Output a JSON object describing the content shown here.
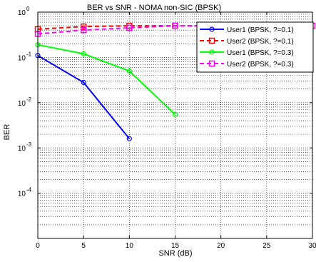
{
  "chart_data": {
    "type": "line",
    "title": "BER vs SNR - NOMA non-SIC (BPSK)",
    "xlabel": "SNR (dB)",
    "ylabel": "BER",
    "xscale": "linear",
    "yscale": "log",
    "xlim": [
      0,
      30
    ],
    "ylim": [
      1e-05,
      1
    ],
    "grid": true,
    "legend_position": "top-right",
    "x_ticks": [
      "0",
      "5",
      "10",
      "15",
      "20",
      "25",
      "30"
    ],
    "y_ticks": [
      {
        "base": "10",
        "exp": "0"
      },
      {
        "base": "10",
        "exp": "-1"
      },
      {
        "base": "10",
        "exp": "-2"
      },
      {
        "base": "10",
        "exp": "-3"
      },
      {
        "base": "10",
        "exp": "-4"
      }
    ],
    "series": [
      {
        "name": "User1 (BPSK, ?=0.1)",
        "color": "#0000ff",
        "dash": "solid",
        "marker": "circle",
        "x": [
          0,
          5,
          10
        ],
        "y": [
          0.11,
          0.028,
          0.0016
        ]
      },
      {
        "name": "User2 (BPSK, ?=0.1)",
        "color": "#ff0000",
        "dash": "dashed",
        "marker": "square",
        "x": [
          0,
          5,
          10,
          15,
          20,
          25,
          30
        ],
        "y": [
          0.42,
          0.48,
          0.5,
          0.5,
          0.5,
          0.5,
          0.5
        ]
      },
      {
        "name": "User1 (BPSK, ?=0.3)",
        "color": "#00ff00",
        "dash": "solid",
        "marker": "circle",
        "x": [
          0,
          5,
          10,
          15
        ],
        "y": [
          0.19,
          0.12,
          0.05,
          0.0055
        ]
      },
      {
        "name": "User2 (BPSK, ?=0.3)",
        "color": "#ff00ff",
        "dash": "dashed",
        "marker": "square",
        "x": [
          0,
          5,
          10,
          15,
          20,
          25,
          30
        ],
        "y": [
          0.33,
          0.4,
          0.45,
          0.5,
          0.5,
          0.5,
          0.5
        ]
      }
    ]
  }
}
